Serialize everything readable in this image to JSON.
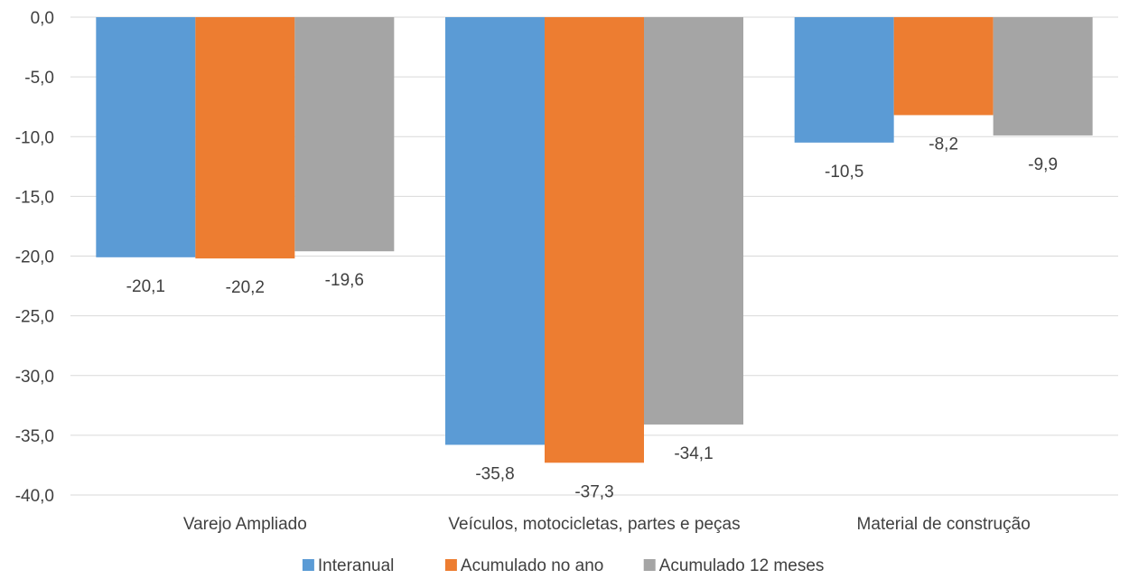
{
  "chart_data": {
    "type": "bar",
    "categories": [
      "Varejo Ampliado",
      "Veículos, motocicletas, partes e peças",
      "Material de construção"
    ],
    "series": [
      {
        "name": "Interanual",
        "color": "#5b9bd5",
        "values": [
          -20.1,
          -35.8,
          -10.5
        ],
        "labels": [
          "-20,1",
          "-35,8",
          "-10,5"
        ]
      },
      {
        "name": "Acumulado no ano",
        "color": "#ed7d31",
        "values": [
          -20.2,
          -37.3,
          -8.2
        ],
        "labels": [
          "-20,2",
          "-37,3",
          "-8,2"
        ]
      },
      {
        "name": "Acumulado 12 meses",
        "color": "#a5a5a5",
        "values": [
          -19.6,
          -34.1,
          -9.9
        ],
        "labels": [
          "-19,6",
          "-34,1",
          "-9,9"
        ]
      }
    ],
    "ylim": [
      -40,
      0
    ],
    "yticks": [
      0,
      -5,
      -10,
      -15,
      -20,
      -25,
      -30,
      -35,
      -40
    ],
    "ytick_labels": [
      "0,0",
      "-5,0",
      "-10,0",
      "-15,0",
      "-20,0",
      "-25,0",
      "-30,0",
      "-35,0",
      "-40,0"
    ],
    "grid": true,
    "legend": "bottom-center"
  }
}
